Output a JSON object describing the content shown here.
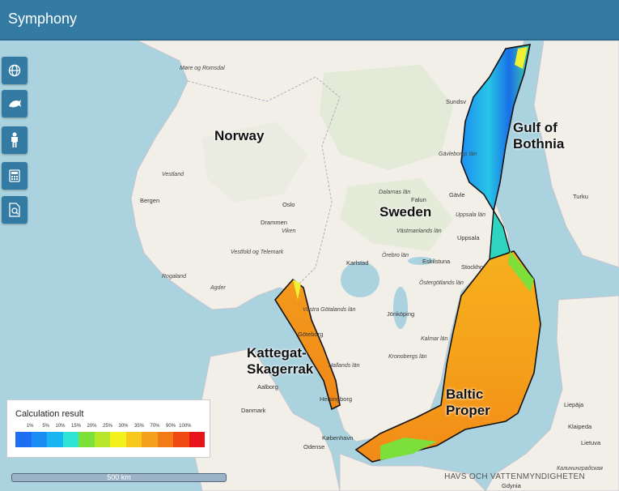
{
  "app": {
    "title": "Symphony"
  },
  "toolbar": [
    {
      "icon": "globe-icon"
    },
    {
      "icon": "fish-icon"
    },
    {
      "icon": "person-icon"
    },
    {
      "icon": "calculator-icon"
    },
    {
      "icon": "report-icon"
    }
  ],
  "regions": {
    "norway": "Norway",
    "sweden": "Sweden",
    "gulf_line1": "Gulf of",
    "gulf_line2": "Bothnia",
    "kattegat_line1": "Kattegat-",
    "kattegat_line2": "Skagerrak",
    "baltic_line1": "Baltic",
    "baltic_line2": "Proper"
  },
  "map_places": {
    "bergen": "Bergen",
    "oslo": "Oslo",
    "drammen": "Drammen",
    "vestland": "Vestland",
    "agder": "Agder",
    "viken": "Viken",
    "more": "Møre og Romsdal",
    "rogaland": "Rogaland",
    "vestfold": "Vestfold og Telemark",
    "falun": "Falun",
    "gavle": "Gävle",
    "uppsala": "Uppsala",
    "stockholm": "Stockho",
    "karlstad": "Karlstad",
    "eskilstuna": "Eskilstuna",
    "jonkoping": "Jönköping",
    "goteborg": "Göteborg",
    "aalborg": "Aalborg",
    "danmark": "Danmark",
    "odense": "Odense",
    "kobenhavn": "København",
    "helsingborg": "Helsingborg",
    "turku": "Turku",
    "klaipeda": "Klaipeda",
    "liepaja": "Liepāja",
    "lietuva": "Lietuva",
    "gdynia": "Gdynia",
    "dalarnas": "Dalarnas län",
    "uppsala_lan": "Uppsala län",
    "vastmanlands": "Västmanlands län",
    "orebro": "Örebro län",
    "ostergotlands": "Östergötlands län",
    "kronobergs": "Kronobergs län",
    "kalmar": "Kalmar län",
    "hallands": "Hallands län",
    "sundsvall": "Sundsv",
    "gavleborgs": "Gävleborgs län",
    "vastra": "Västra Götalands län",
    "kaliningrad": "Калининградская"
  },
  "legend": {
    "title": "Calculation result",
    "ticks": [
      "1%",
      "5%",
      "10%",
      "15%",
      "20%",
      "25%",
      "30%",
      "35%",
      "70%",
      "90%",
      "100%"
    ],
    "colors": [
      "#1e6ef2",
      "#1a8ef4",
      "#18b5f0",
      "#2fe4d2",
      "#7de03a",
      "#b8e62a",
      "#f4f21e",
      "#f8c81c",
      "#f5a01c",
      "#f27a18",
      "#f04a12",
      "#e8141a"
    ]
  },
  "scale": {
    "label": "500 km"
  },
  "attribution": "HAVS OCH VATTENMYNDIGHETEN"
}
